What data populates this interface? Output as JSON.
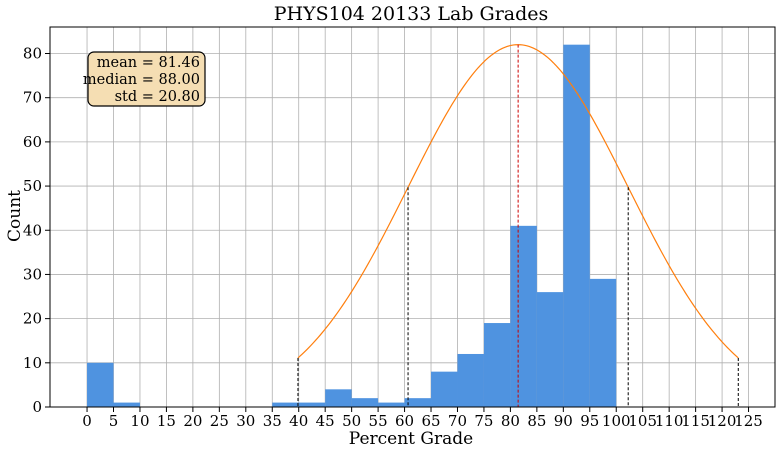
{
  "chart_data": {
    "type": "bar",
    "title": "PHYS104 20133 Lab Grades",
    "xlabel": "Percent Grade",
    "ylabel": "Count",
    "xlim": [
      -7,
      130
    ],
    "ylim": [
      0,
      86
    ],
    "xticks": [
      0,
      5,
      10,
      15,
      20,
      25,
      30,
      35,
      40,
      45,
      50,
      55,
      60,
      65,
      70,
      75,
      80,
      85,
      90,
      95,
      100,
      105,
      110,
      115,
      120,
      125
    ],
    "yticks": [
      0,
      10,
      20,
      30,
      40,
      50,
      60,
      70,
      80
    ],
    "grid": true,
    "bin_width": 5,
    "bins": [
      {
        "start": 0,
        "count": 10
      },
      {
        "start": 5,
        "count": 1
      },
      {
        "start": 35,
        "count": 1
      },
      {
        "start": 40,
        "count": 1
      },
      {
        "start": 45,
        "count": 4
      },
      {
        "start": 50,
        "count": 2
      },
      {
        "start": 55,
        "count": 1
      },
      {
        "start": 60,
        "count": 2
      },
      {
        "start": 65,
        "count": 8
      },
      {
        "start": 70,
        "count": 12
      },
      {
        "start": 75,
        "count": 19
      },
      {
        "start": 80,
        "count": 41
      },
      {
        "start": 85,
        "count": 26
      },
      {
        "start": 90,
        "count": 82
      },
      {
        "start": 95,
        "count": 29
      }
    ],
    "bar_color": "#4f93e0",
    "curve_color": "#ff7f0e",
    "mean_line_color": "#cc0000",
    "std_line_color": "#000000",
    "stats": {
      "mean": 81.46,
      "median": 88.0,
      "std": 20.8,
      "lines": [
        "mean = 81.46",
        "median = 88.00",
        "std = 20.80"
      ],
      "box_color": "#f5deb3"
    },
    "curve": {
      "peak": 82,
      "mean": 81.46,
      "std": 20.8
    }
  }
}
